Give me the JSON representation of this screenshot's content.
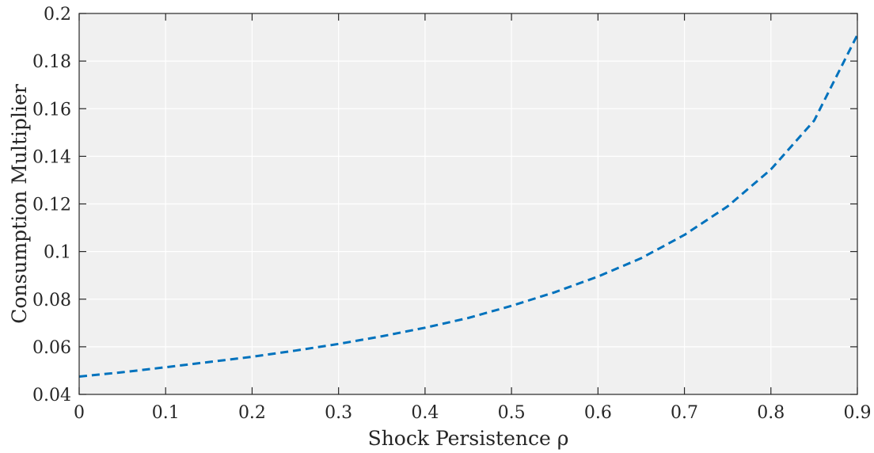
{
  "chart_data": {
    "type": "line",
    "title": "",
    "xlabel": "Shock Persistence ρ",
    "ylabel": "Consumption Multiplier",
    "xlim": [
      0,
      0.9
    ],
    "ylim": [
      0.04,
      0.2
    ],
    "xticks": [
      0,
      0.1,
      0.2,
      0.3,
      0.4,
      0.5,
      0.6,
      0.7,
      0.8,
      0.9
    ],
    "xtick_labels": [
      "0",
      "0.1",
      "0.2",
      "0.3",
      "0.4",
      "0.5",
      "0.6",
      "0.7",
      "0.8",
      "0.9"
    ],
    "yticks": [
      0.04,
      0.06,
      0.08,
      0.1,
      0.12,
      0.14,
      0.16,
      0.18,
      0.2
    ],
    "ytick_labels": [
      "0.04",
      "0.06",
      "0.08",
      "0.1",
      "0.12",
      "0.14",
      "0.16",
      "0.18",
      "0.2"
    ],
    "grid": true,
    "legend": "none",
    "series": [
      {
        "line_style": "dashed",
        "color": "#0072BD",
        "x": [
          0,
          0.05,
          0.1,
          0.15,
          0.2,
          0.25,
          0.3,
          0.35,
          0.4,
          0.45,
          0.5,
          0.55,
          0.6,
          0.65,
          0.7,
          0.75,
          0.8,
          0.85,
          0.9
        ],
        "y": [
          0.0475,
          0.0493,
          0.0514,
          0.0536,
          0.0558,
          0.0584,
          0.0612,
          0.0644,
          0.068,
          0.0721,
          0.0772,
          0.0829,
          0.0895,
          0.0972,
          0.107,
          0.119,
          0.1345,
          0.155,
          0.191
        ]
      }
    ],
    "colors": {
      "plot_background": "#f0f0f0",
      "grid": "#ffffff",
      "axis": "#262626"
    }
  }
}
